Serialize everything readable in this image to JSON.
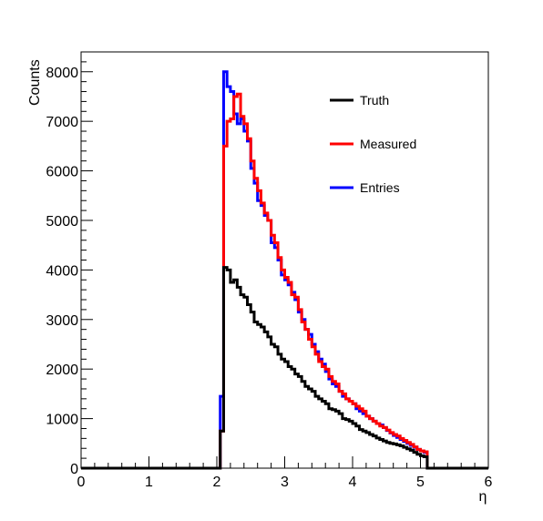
{
  "chart_data": {
    "type": "line",
    "subtype": "step-histogram",
    "xlabel": "η",
    "ylabel": "Counts",
    "xlim": [
      0,
      6
    ],
    "ylim": [
      0,
      8400
    ],
    "x_ticks": [
      "0",
      "1",
      "2",
      "3",
      "4",
      "5",
      "6"
    ],
    "y_ticks": [
      "0",
      "1000",
      "2000",
      "3000",
      "4000",
      "5000",
      "6000",
      "7000",
      "8000"
    ],
    "grid": false,
    "legend_position": "top-right",
    "bin_width": 0.05,
    "x_bin_edges_start": 2.05,
    "series": [
      {
        "name": "Truth",
        "color": "#000000",
        "values": [
          750,
          4050,
          4000,
          3750,
          3800,
          3650,
          3500,
          3450,
          3300,
          3150,
          2950,
          2900,
          2850,
          2750,
          2650,
          2500,
          2450,
          2300,
          2200,
          2150,
          2050,
          2000,
          1900,
          1850,
          1750,
          1650,
          1600,
          1550,
          1450,
          1400,
          1350,
          1300,
          1200,
          1180,
          1150,
          1100,
          1000,
          980,
          950,
          900,
          850,
          780,
          750,
          720,
          680,
          650,
          610,
          580,
          550,
          520,
          500,
          490,
          470,
          450,
          420,
          390,
          360,
          320,
          280,
          250,
          230
        ]
      },
      {
        "name": "Measured",
        "color": "#ff0000",
        "values": [
          750,
          6500,
          7000,
          7050,
          7500,
          7550,
          7100,
          6950,
          6650,
          6200,
          5850,
          5600,
          5350,
          5150,
          5000,
          4700,
          4550,
          4250,
          4000,
          3850,
          3750,
          3500,
          3450,
          3200,
          2950,
          2800,
          2600,
          2450,
          2300,
          2150,
          2050,
          2000,
          1850,
          1750,
          1700,
          1550,
          1500,
          1400,
          1350,
          1300,
          1250,
          1200,
          1150,
          1050,
          1000,
          950,
          900,
          850,
          820,
          770,
          720,
          680,
          650,
          600,
          560,
          520,
          480,
          430,
          380,
          350,
          330
        ]
      },
      {
        "name": "Entries",
        "color": "#0000ff",
        "values": [
          1450,
          8000,
          7700,
          7600,
          7150,
          6950,
          7050,
          6800,
          6600,
          6050,
          5750,
          5400,
          5300,
          5100,
          5000,
          4550,
          4450,
          4200,
          3900,
          3800,
          3700,
          3550,
          3400,
          3150,
          3000,
          2800,
          2700,
          2500,
          2350,
          2200,
          2100,
          1950,
          1800,
          1700,
          1650,
          1550,
          1450,
          1400,
          1350,
          1300,
          1200,
          1150,
          1100,
          1050,
          1000,
          950,
          900,
          870,
          820,
          760,
          710,
          660,
          620,
          580,
          540,
          500,
          460,
          420,
          380,
          350,
          320
        ]
      }
    ]
  }
}
